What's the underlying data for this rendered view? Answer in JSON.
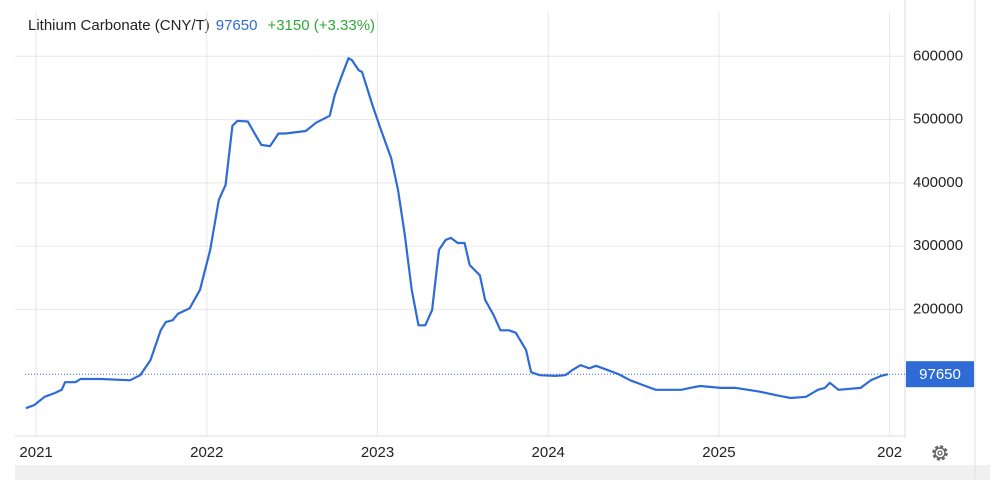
{
  "chart_data": {
    "type": "line",
    "title": "Lithium Carbonate (CNY/T)",
    "last_value": 97650,
    "change_text": "+3150 (+3.33%)",
    "x": [
      2020.94,
      2020.99,
      2021.05,
      2021.11,
      2021.15,
      2021.17,
      2021.23,
      2021.26,
      2021.38,
      2021.55,
      2021.61,
      2021.67,
      2021.73,
      2021.76,
      2021.8,
      2021.83,
      2021.9,
      2021.96,
      2022.02,
      2022.07,
      2022.11,
      2022.15,
      2022.18,
      2022.24,
      2022.28,
      2022.32,
      2022.37,
      2022.42,
      2022.46,
      2022.58,
      2022.64,
      2022.72,
      2022.75,
      2022.79,
      2022.83,
      2022.85,
      2022.89,
      2022.91,
      2022.97,
      2023.02,
      2023.08,
      2023.12,
      2023.16,
      2023.2,
      2023.24,
      2023.28,
      2023.32,
      2023.36,
      2023.4,
      2023.43,
      2023.47,
      2023.51,
      2023.54,
      2023.6,
      2023.63,
      2023.68,
      2023.72,
      2023.77,
      2023.81,
      2023.87,
      2023.9,
      2023.95,
      2024.04,
      2024.1,
      2024.14,
      2024.19,
      2024.24,
      2024.28,
      2024.35,
      2024.41,
      2024.48,
      2024.54,
      2024.63,
      2024.69,
      2024.78,
      2024.83,
      2024.89,
      2025.01,
      2025.1,
      2025.24,
      2025.36,
      2025.42,
      2025.51,
      2025.58,
      2025.62,
      2025.65,
      2025.7,
      2025.83,
      2025.89,
      2025.95,
      2025.99
    ],
    "series": [
      {
        "name": "Lithium Carbonate",
        "color": "#2f6bd6",
        "values": [
          44000,
          49000,
          62000,
          68000,
          73000,
          85000,
          85000,
          90000,
          90000,
          88000,
          96000,
          120000,
          167000,
          180000,
          183000,
          193000,
          202000,
          231000,
          294000,
          373000,
          397000,
          490000,
          498000,
          497000,
          478000,
          460000,
          458000,
          478000,
          478000,
          482000,
          495000,
          506000,
          539000,
          569000,
          597000,
          594000,
          578000,
          575000,
          523000,
          484000,
          439000,
          389000,
          318000,
          231000,
          175000,
          175000,
          199000,
          294000,
          310000,
          313000,
          305000,
          305000,
          270000,
          254000,
          215000,
          191000,
          167000,
          167000,
          163000,
          136000,
          101000,
          96000,
          95000,
          96000,
          104000,
          112000,
          107000,
          111000,
          104000,
          98000,
          88000,
          82000,
          73000,
          73000,
          73000,
          76000,
          79000,
          76000,
          76000,
          70000,
          63000,
          60000,
          62000,
          73000,
          76000,
          84000,
          73000,
          76000,
          88000,
          95000,
          97650
        ]
      }
    ],
    "xlim": [
      2020.935,
      2026.09
    ],
    "xticks": [
      2021,
      2022,
      2023,
      2024,
      2025,
      {
        "value": 2026,
        "label": "202"
      }
    ],
    "ylim": [
      0,
      670000
    ],
    "yticks": [
      200000,
      300000,
      400000,
      500000,
      600000
    ],
    "grid": true
  }
}
